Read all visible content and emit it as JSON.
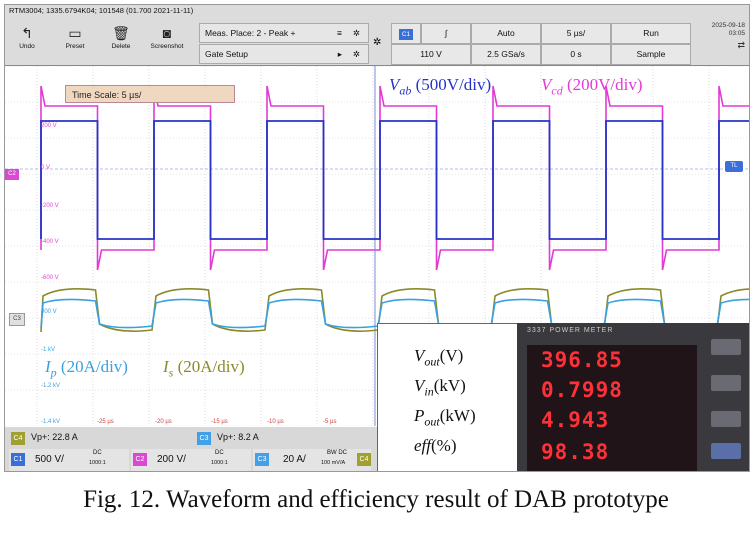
{
  "figure": {
    "caption": "Fig. 12. Waveform and efficiency result of DAB prototype"
  },
  "scope": {
    "title_line": "RTM3004; 1335.6794K04; 101548 (01.700 2021-11-11)",
    "toolbar": [
      {
        "label": "Undo",
        "icon": "undo-icon",
        "glyph": "↰"
      },
      {
        "label": "Preset",
        "icon": "preset-icon",
        "glyph": "▭"
      },
      {
        "label": "Delete",
        "icon": "trash-icon",
        "glyph": "🗑"
      },
      {
        "label": "Screenshot",
        "icon": "camera-icon",
        "glyph": "◙"
      }
    ],
    "meas_place": "Meas. Place: 2 - Peak +",
    "gate_setup": "Gate Setup",
    "channel_chip": "C1",
    "trigger_edge": "∫",
    "trigger_mode": "Auto",
    "timebase": "5 µs/",
    "run_state": "Run",
    "trigger_level": "110 V",
    "sample_rate": "2.5 GSa/s",
    "offset": "0 s",
    "acq_mode": "Sample",
    "date": "2025-09-18",
    "time": "03:05",
    "time_scale_label": "Time Scale: 5 µs/",
    "trigger_marker": "TL",
    "ch2_marker": "C2",
    "ch3_marker": "C3",
    "y_ticks_upper": [
      "400 V",
      "200 V",
      "0 V",
      "-200 V",
      "-400 V",
      "-600 V"
    ],
    "y_ticks_lower": [
      "800 V",
      "-1 kV",
      "-1.2 kV",
      "-1.4 kV"
    ],
    "x_ticks": [
      "-25 µs",
      "-20 µs",
      "-15 µs",
      "-10 µs",
      "-5 µs"
    ],
    "labels": {
      "vab_symbol": "V",
      "vab_sub": "ab",
      "vab_scale": " (500V/div)",
      "vcd_symbol": "V",
      "vcd_sub": "cd",
      "vcd_scale": " (200V/div)",
      "ip_symbol": "I",
      "ip_sub": "p",
      "ip_scale": " (20A/div)",
      "is_symbol": "I",
      "is_sub": "s",
      "is_scale": " (20A/div)"
    },
    "readouts": {
      "c4_chip": "C4",
      "c4_value": "Vp+: 22.8 A",
      "c3_chip": "C3",
      "c3_value": "Vp+: 8.2 A"
    },
    "channels": [
      {
        "chip": "C1",
        "scale": "500 V/",
        "coupling": "DC",
        "sub": "1000:1"
      },
      {
        "chip": "C2",
        "scale": "200 V/",
        "coupling": "DC",
        "sub": "1000:1"
      },
      {
        "chip": "C3",
        "scale": "20 A/",
        "coupling": "BW DC",
        "sub": "100 mV/A"
      },
      {
        "chip": "C4",
        "scale": "",
        "coupling": "",
        "sub": ""
      }
    ],
    "colors": {
      "vab": "#2733c8",
      "vcd": "#e23ad4",
      "ip": "#3aa0e0",
      "is": "#8a8a28",
      "c1": "#3a6fd8",
      "c2": "#d84bd0",
      "c3": "#42a0e8",
      "c4": "#a0a030"
    }
  },
  "power_meter": {
    "header": "3337  POWER METER",
    "rows": [
      {
        "quantity": "V",
        "sub": "out",
        "unit": "(V)",
        "value": "396.85"
      },
      {
        "quantity": "V",
        "sub": "in",
        "unit": "(kV)",
        "value": "0.7998"
      },
      {
        "quantity": "P",
        "sub": "out",
        "unit": "(kW)",
        "value": "4.943"
      },
      {
        "quantity": "eff",
        "sub": "",
        "unit": "(%)",
        "value": "98.38"
      }
    ]
  }
}
